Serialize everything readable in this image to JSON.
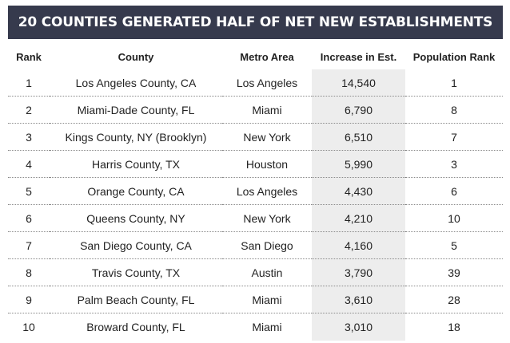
{
  "chart_data": {
    "type": "table",
    "title": "20 COUNTIES GENERATED HALF OF NET NEW ESTABLISHMENTS",
    "columns": [
      "Rank",
      "County",
      "Metro Area",
      "Increase in Est.",
      "Population Rank"
    ],
    "rows": [
      {
        "rank": "1",
        "county": "Los Angeles County, CA",
        "metro": "Los Angeles",
        "increase": "14,540",
        "pop_rank": "1"
      },
      {
        "rank": "2",
        "county": "Miami-Dade County, FL",
        "metro": "Miami",
        "increase": "6,790",
        "pop_rank": "8"
      },
      {
        "rank": "3",
        "county": "Kings County, NY (Brooklyn)",
        "metro": "New York",
        "increase": "6,510",
        "pop_rank": "7"
      },
      {
        "rank": "4",
        "county": "Harris County, TX",
        "metro": "Houston",
        "increase": "5,990",
        "pop_rank": "3"
      },
      {
        "rank": "5",
        "county": "Orange County, CA",
        "metro": "Los Angeles",
        "increase": "4,430",
        "pop_rank": "6"
      },
      {
        "rank": "6",
        "county": "Queens County, NY",
        "metro": "New York",
        "increase": "4,210",
        "pop_rank": "10"
      },
      {
        "rank": "7",
        "county": "San Diego County, CA",
        "metro": "San Diego",
        "increase": "4,160",
        "pop_rank": "5"
      },
      {
        "rank": "8",
        "county": "Travis County, TX",
        "metro": "Austin",
        "increase": "3,790",
        "pop_rank": "39"
      },
      {
        "rank": "9",
        "county": "Palm Beach County, FL",
        "metro": "Miami",
        "increase": "3,610",
        "pop_rank": "28"
      },
      {
        "rank": "10",
        "county": "Broward County, FL",
        "metro": "Miami",
        "increase": "3,010",
        "pop_rank": "18"
      }
    ]
  },
  "colors": {
    "title_bar": "#363a4d",
    "title_text": "#ffffff",
    "highlight_column": "#ededed",
    "row_divider": "#8a8a8a"
  }
}
